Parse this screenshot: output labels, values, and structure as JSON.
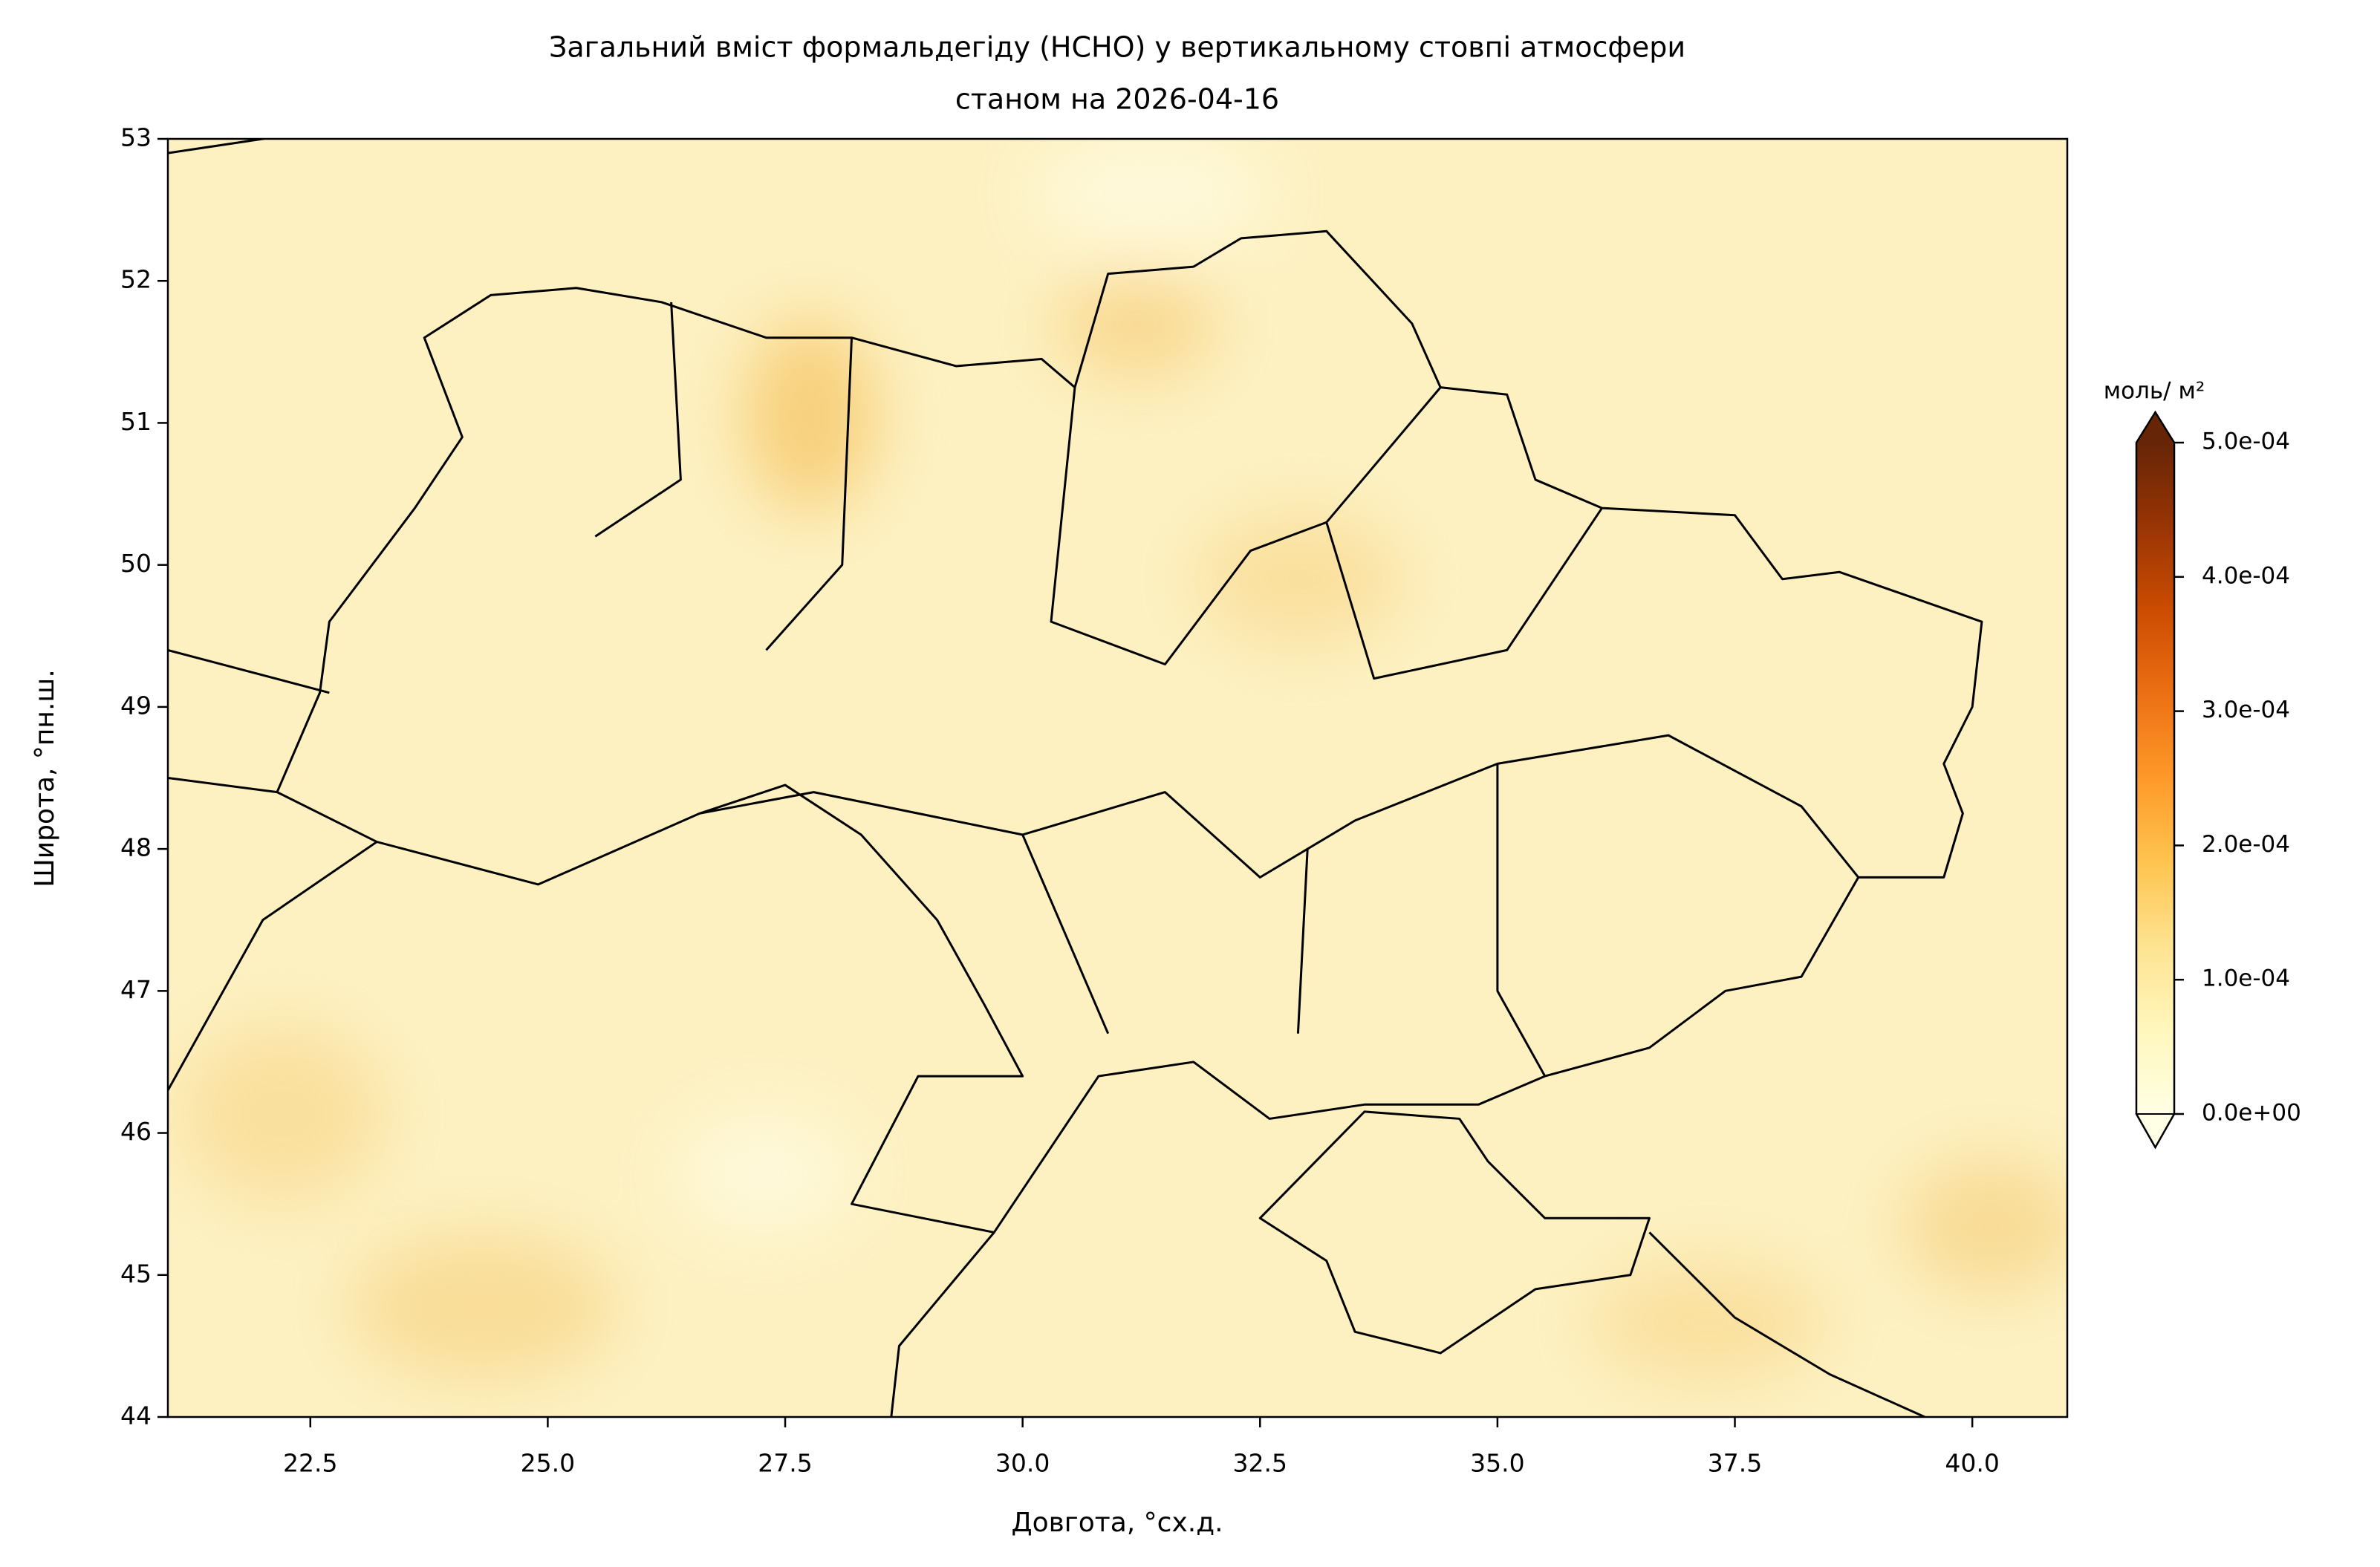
{
  "chart_data": {
    "type": "contour-map",
    "title": [
      "Загальний вміст формальдегіду (HCHO) у вертикальному стовпі атмосфери",
      "станом на 2026-04-16"
    ],
    "xlabel": "Довгота, °сх.д.",
    "ylabel": "Широта,  °пн.ш.",
    "xlim": [
      21,
      41
    ],
    "ylim": [
      44,
      53
    ],
    "xticks": [
      22.5,
      {
        "value": 25,
        "label": "25.0"
      },
      27.5,
      {
        "value": 30,
        "label": "30.0"
      },
      32.5,
      {
        "value": 35,
        "label": "35.0"
      },
      37.5,
      {
        "value": 40,
        "label": "40.0"
      }
    ],
    "yticks": [
      44,
      45,
      46,
      47,
      48,
      49,
      50,
      51,
      52,
      53
    ],
    "colorbar_label": "моль/ м²",
    "colorbar_lim": [
      0,
      0.0005
    ],
    "colorbar_ticks": [
      {
        "value": 0,
        "label": "0.0e+00"
      },
      {
        "value": 0.0001,
        "label": "1.0e-04"
      },
      {
        "value": 0.0002,
        "label": "2.0e-04"
      },
      {
        "value": 0.0003,
        "label": "3.0e-04"
      },
      {
        "value": 0.0004,
        "label": "4.0e-04"
      },
      {
        "value": 0.0005,
        "label": "5.0e-04"
      }
    ],
    "colorbar_colors": [
      "#ffffe5",
      "#fff7bc",
      "#fee391",
      "#fec44f",
      "#fe9929",
      "#ec7014",
      "#cc4c02",
      "#993404",
      "#662506"
    ]
  }
}
